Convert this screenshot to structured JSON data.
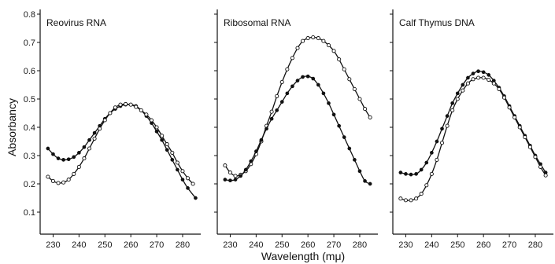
{
  "figure": {
    "ylabel": "Absorbancy",
    "xlabel": "Wavelength (mμ)"
  },
  "chart_data": [
    {
      "type": "line",
      "title": "Reovirus RNA",
      "xlabel": "Wavelength (mμ)",
      "ylabel": "Absorbancy",
      "ylim": [
        0,
        0.8
      ],
      "xlim": [
        225,
        287
      ],
      "y_ticks": [
        "0.8",
        "0.7",
        "0.6",
        "0.5",
        "0.4",
        "0.3",
        "0.2",
        "0.1"
      ],
      "x_ticks": [
        "230",
        "240",
        "250",
        "260",
        "270",
        "280"
      ],
      "series": [
        {
          "marker": "filled",
          "x": [
            228,
            230,
            232,
            234,
            236,
            238,
            240,
            242,
            244,
            246,
            248,
            250,
            252,
            254,
            256,
            258,
            260,
            262,
            264,
            266,
            268,
            270,
            272,
            274,
            276,
            278,
            280,
            282,
            285
          ],
          "y": [
            0.325,
            0.305,
            0.29,
            0.285,
            0.287,
            0.295,
            0.31,
            0.33,
            0.355,
            0.38,
            0.405,
            0.43,
            0.45,
            0.465,
            0.475,
            0.48,
            0.48,
            0.475,
            0.46,
            0.44,
            0.415,
            0.385,
            0.355,
            0.32,
            0.285,
            0.25,
            0.215,
            0.185,
            0.15
          ]
        },
        {
          "marker": "open",
          "x": [
            228,
            230,
            232,
            234,
            236,
            238,
            240,
            242,
            244,
            246,
            248,
            250,
            252,
            254,
            256,
            258,
            260,
            262,
            264,
            266,
            268,
            270,
            272,
            274,
            276,
            278,
            280,
            282,
            284
          ],
          "y": [
            0.225,
            0.21,
            0.203,
            0.205,
            0.215,
            0.235,
            0.26,
            0.29,
            0.325,
            0.36,
            0.395,
            0.425,
            0.45,
            0.47,
            0.48,
            0.482,
            0.48,
            0.472,
            0.46,
            0.445,
            0.425,
            0.4,
            0.37,
            0.34,
            0.31,
            0.275,
            0.245,
            0.22,
            0.2
          ]
        }
      ]
    },
    {
      "type": "line",
      "title": "Ribosomal RNA",
      "xlabel": "Wavelength (mμ)",
      "ylabel": "Absorbancy",
      "ylim": [
        0,
        0.8
      ],
      "xlim": [
        225,
        287
      ],
      "x_ticks": [
        "230",
        "240",
        "250",
        "260",
        "270",
        "280"
      ],
      "series": [
        {
          "marker": "open",
          "x": [
            228,
            230,
            232,
            234,
            236,
            238,
            240,
            242,
            244,
            246,
            248,
            250,
            252,
            254,
            256,
            258,
            260,
            262,
            264,
            266,
            268,
            270,
            272,
            274,
            276,
            278,
            280,
            282,
            284
          ],
          "y": [
            0.265,
            0.24,
            0.228,
            0.232,
            0.245,
            0.27,
            0.305,
            0.35,
            0.405,
            0.455,
            0.51,
            0.56,
            0.605,
            0.645,
            0.68,
            0.705,
            0.715,
            0.718,
            0.715,
            0.705,
            0.69,
            0.67,
            0.64,
            0.605,
            0.57,
            0.535,
            0.5,
            0.465,
            0.435
          ]
        },
        {
          "marker": "filled",
          "x": [
            228,
            230,
            232,
            234,
            236,
            238,
            240,
            242,
            244,
            246,
            248,
            250,
            252,
            254,
            256,
            258,
            260,
            262,
            264,
            266,
            268,
            270,
            272,
            274,
            276,
            278,
            280,
            282,
            284
          ],
          "y": [
            0.215,
            0.212,
            0.215,
            0.228,
            0.25,
            0.28,
            0.315,
            0.355,
            0.395,
            0.43,
            0.46,
            0.49,
            0.52,
            0.545,
            0.565,
            0.578,
            0.58,
            0.572,
            0.55,
            0.52,
            0.485,
            0.445,
            0.405,
            0.365,
            0.325,
            0.285,
            0.245,
            0.21,
            0.2
          ]
        }
      ]
    },
    {
      "type": "line",
      "title": "Calf Thymus DNA",
      "xlabel": "Wavelength (mμ)",
      "ylabel": "Absorbancy",
      "ylim": [
        0,
        0.8
      ],
      "xlim": [
        225,
        287
      ],
      "x_ticks": [
        "230",
        "240",
        "250",
        "260",
        "270",
        "280"
      ],
      "series": [
        {
          "marker": "filled",
          "x": [
            228,
            230,
            232,
            234,
            236,
            238,
            240,
            242,
            244,
            246,
            248,
            250,
            252,
            254,
            256,
            258,
            260,
            262,
            264,
            266,
            268,
            270,
            272,
            274,
            276,
            278,
            280,
            282,
            284
          ],
          "y": [
            0.24,
            0.235,
            0.233,
            0.235,
            0.25,
            0.275,
            0.31,
            0.35,
            0.395,
            0.44,
            0.485,
            0.52,
            0.55,
            0.575,
            0.59,
            0.598,
            0.595,
            0.585,
            0.565,
            0.54,
            0.51,
            0.475,
            0.44,
            0.405,
            0.37,
            0.335,
            0.3,
            0.27,
            0.24
          ]
        },
        {
          "marker": "open",
          "x": [
            228,
            230,
            232,
            234,
            236,
            238,
            240,
            242,
            244,
            246,
            248,
            250,
            252,
            254,
            256,
            258,
            260,
            262,
            264,
            266,
            268,
            270,
            272,
            274,
            276,
            278,
            280,
            282,
            284
          ],
          "y": [
            0.148,
            0.142,
            0.142,
            0.148,
            0.165,
            0.195,
            0.235,
            0.285,
            0.345,
            0.405,
            0.46,
            0.5,
            0.53,
            0.555,
            0.57,
            0.575,
            0.575,
            0.568,
            0.555,
            0.535,
            0.505,
            0.47,
            0.435,
            0.4,
            0.365,
            0.33,
            0.295,
            0.26,
            0.23
          ]
        }
      ]
    }
  ]
}
